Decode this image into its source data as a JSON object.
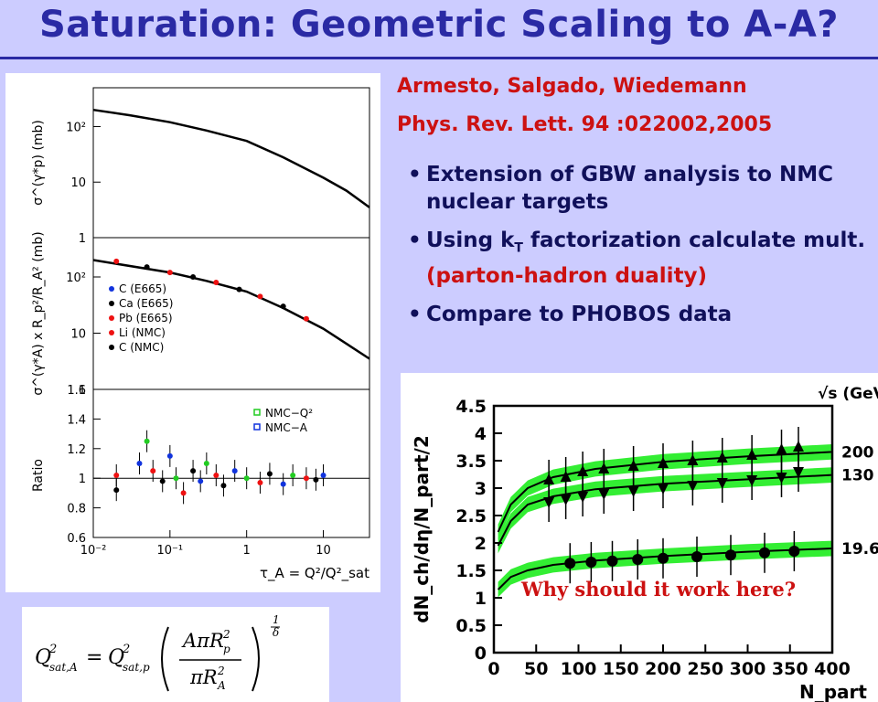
{
  "title": "Saturation: Geometric Scaling to A-A?",
  "citation": {
    "authors": "Armesto, Salgado, Wiedemann",
    "journal": "Phys. Rev. Lett. 94 :022002,2005"
  },
  "bullets": [
    {
      "text": "Extension of GBW analysis to NMC nuclear targets"
    },
    {
      "text": "Using k",
      "sub": "T",
      "text2": " factorization calculate mult. ",
      "highlight": "(parton-hadron duality)"
    },
    {
      "text": "Compare to PHOBOS data"
    }
  ],
  "accent_colors": {
    "title": "#2a2aa4",
    "highlight": "#cc1111",
    "band": "#33ee33",
    "background": "#ccccff"
  },
  "chart_data": [
    {
      "type": "scatter",
      "panel": "gamma-p cross section",
      "ylabel": "σ^(γ*p) (mb)",
      "yscale": "log",
      "ylim": [
        1,
        500
      ],
      "yticks": [
        "1",
        "10",
        "10²"
      ],
      "curve": [
        [
          0.01,
          200
        ],
        [
          0.03,
          160
        ],
        [
          0.1,
          120
        ],
        [
          0.3,
          85
        ],
        [
          1,
          55
        ],
        [
          3,
          28
        ],
        [
          10,
          12
        ],
        [
          20,
          7
        ],
        [
          40,
          3.5
        ]
      ]
    },
    {
      "type": "scatter",
      "panel": "nuclear ratio-scaled cross section",
      "ylabel": "σ^(γ*A) x R_p²/R_A² (mb)",
      "yscale": "log",
      "ylim": [
        1,
        500
      ],
      "yticks": [
        "1",
        "10",
        "10²"
      ],
      "legend": [
        "C (E665)",
        "Ca (E665)",
        "Pb (E665)",
        "Li (NMC)",
        "C (NMC)"
      ],
      "legend_colors": [
        "#1133dd",
        "#000000",
        "#ee1111",
        "#ee1111",
        "#000000"
      ],
      "curve": [
        [
          0.01,
          200
        ],
        [
          0.1,
          120
        ],
        [
          0.3,
          85
        ],
        [
          1,
          55
        ],
        [
          3,
          28
        ],
        [
          10,
          12
        ],
        [
          40,
          3.5
        ]
      ],
      "points": [
        [
          0.02,
          190
        ],
        [
          0.05,
          150
        ],
        [
          0.1,
          120
        ],
        [
          0.2,
          100
        ],
        [
          0.4,
          80
        ],
        [
          0.8,
          60
        ],
        [
          1.5,
          45
        ],
        [
          3,
          30
        ],
        [
          6,
          18
        ]
      ]
    },
    {
      "type": "scatter",
      "panel": "ratio",
      "ylabel": "Ratio",
      "xlabel": "τ_A = Q²/Q²_sat",
      "xscale": "log",
      "xlim": [
        0.01,
        40
      ],
      "ylim": [
        0.6,
        1.6
      ],
      "yticks": [
        "0.6",
        "0.8",
        "1",
        "1.2",
        "1.4",
        "1.6"
      ],
      "xticks": [
        "10⁻²",
        "10⁻¹",
        "1",
        "10"
      ],
      "legend": [
        "NMC−Q²",
        "NMC−A"
      ],
      "legend_colors": [
        "#22cc22",
        "#1133dd"
      ],
      "points": [
        [
          0.02,
          1.02
        ],
        [
          0.02,
          0.92
        ],
        [
          0.04,
          1.1
        ],
        [
          0.05,
          1.25
        ],
        [
          0.06,
          1.05
        ],
        [
          0.08,
          0.98
        ],
        [
          0.1,
          1.15
        ],
        [
          0.12,
          1.0
        ],
        [
          0.15,
          0.9
        ],
        [
          0.2,
          1.05
        ],
        [
          0.25,
          0.98
        ],
        [
          0.3,
          1.1
        ],
        [
          0.4,
          1.02
        ],
        [
          0.5,
          0.95
        ],
        [
          0.7,
          1.05
        ],
        [
          1,
          1.0
        ],
        [
          1.5,
          0.97
        ],
        [
          2,
          1.03
        ],
        [
          3,
          0.96
        ],
        [
          4,
          1.02
        ],
        [
          6,
          1.0
        ],
        [
          8,
          0.99
        ],
        [
          10,
          1.02
        ]
      ]
    },
    {
      "type": "scatter",
      "panel": "PHOBOS multiplicity",
      "ylabel": "dN_ch/dη/N_part/2",
      "xlabel": "N_part",
      "xlim": [
        0,
        400
      ],
      "ylim": [
        0,
        4.5
      ],
      "xticks": [
        "0",
        "50",
        "100",
        "150",
        "200",
        "250",
        "300",
        "350",
        "400"
      ],
      "yticks": [
        "0",
        "0.5",
        "1",
        "1.5",
        "2",
        "2.5",
        "3",
        "3.5",
        "4",
        "4.5"
      ],
      "legend_title": "√s (GeV)",
      "annotation": "Why should it work here?",
      "series": [
        {
          "name": "200",
          "x": [
            65,
            85,
            105,
            130,
            165,
            200,
            235,
            270,
            305,
            340,
            360
          ],
          "y": [
            3.15,
            3.2,
            3.3,
            3.35,
            3.4,
            3.45,
            3.5,
            3.55,
            3.6,
            3.7,
            3.75
          ],
          "curve": [
            [
              5,
              2.2
            ],
            [
              20,
              2.7
            ],
            [
              40,
              3.0
            ],
            [
              70,
              3.2
            ],
            [
              120,
              3.35
            ],
            [
              200,
              3.48
            ],
            [
              300,
              3.58
            ],
            [
              400,
              3.66
            ]
          ]
        },
        {
          "name": "130",
          "x": [
            65,
            85,
            105,
            130,
            165,
            200,
            235,
            270,
            305,
            340,
            360
          ],
          "y": [
            2.75,
            2.8,
            2.85,
            2.9,
            2.95,
            3.0,
            3.05,
            3.1,
            3.15,
            3.2,
            3.3
          ],
          "curve": [
            [
              5,
              1.95
            ],
            [
              20,
              2.4
            ],
            [
              40,
              2.7
            ],
            [
              70,
              2.85
            ],
            [
              120,
              2.98
            ],
            [
              200,
              3.08
            ],
            [
              300,
              3.16
            ],
            [
              400,
              3.24
            ]
          ]
        },
        {
          "name": "19.6",
          "x": [
            90,
            115,
            140,
            170,
            200,
            240,
            280,
            320,
            355
          ],
          "y": [
            1.63,
            1.65,
            1.67,
            1.7,
            1.72,
            1.75,
            1.78,
            1.82,
            1.85
          ],
          "curve": [
            [
              5,
              1.15
            ],
            [
              20,
              1.38
            ],
            [
              40,
              1.5
            ],
            [
              70,
              1.6
            ],
            [
              120,
              1.68
            ],
            [
              200,
              1.76
            ],
            [
              300,
              1.84
            ],
            [
              400,
              1.9
            ]
          ]
        }
      ]
    }
  ]
}
